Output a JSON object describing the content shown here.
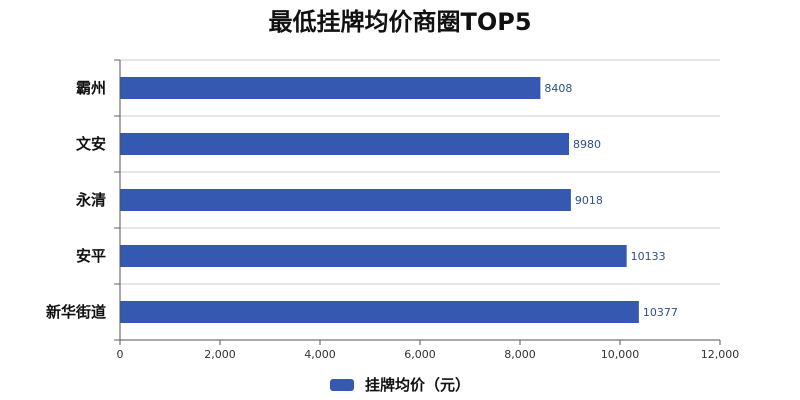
{
  "chart_data": {
    "type": "bar",
    "orientation": "horizontal",
    "title": "最低挂牌均价商圈TOP5",
    "categories": [
      "霸州",
      "文安",
      "永清",
      "安平",
      "新华街道"
    ],
    "series": [
      {
        "name": "挂牌均价（元）",
        "values": [
          8408,
          8980,
          9018,
          10133,
          10377
        ],
        "color": "#3558b0"
      }
    ],
    "data_labels": [
      "8408",
      "8980",
      "9018",
      "10133",
      "10377"
    ],
    "xlim": [
      0,
      12000
    ],
    "xticks": [
      0,
      2000,
      4000,
      6000,
      8000,
      10000,
      12000
    ],
    "xtick_labels": [
      "0",
      "2,000",
      "4,000",
      "6,000",
      "8,000",
      "10,000",
      "12,000"
    ],
    "data_label_color": "#2e4f8f",
    "gridlines": "horizontal separators between categories",
    "legend_position": "bottom-center"
  }
}
